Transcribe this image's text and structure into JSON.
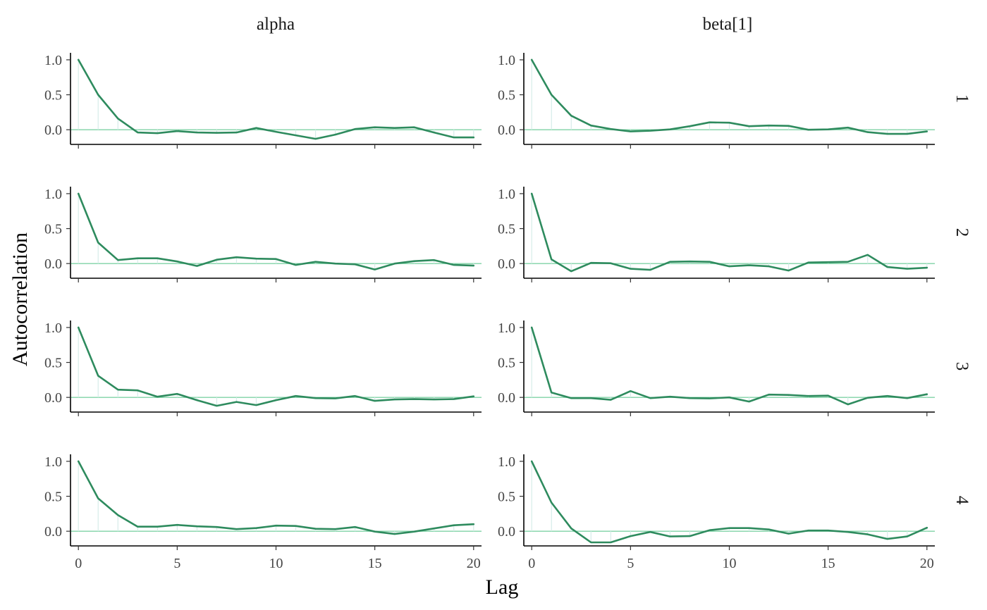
{
  "chart_data": {
    "type": "line",
    "xlabel": "Lag",
    "ylabel": "Autocorrelation",
    "xlim": [
      -0.4,
      20.4
    ],
    "ylim": [
      -0.21,
      1.1
    ],
    "x_ticks": [
      0,
      5,
      10,
      15,
      20
    ],
    "y_ticks": [
      0.0,
      0.5,
      1.0
    ],
    "y_tick_labels": [
      "0.0",
      "0.5",
      "1.0"
    ],
    "grid": false,
    "colors": {
      "line": "#2e8b5e",
      "zero_line": "#7fd3a6",
      "bars": "#d6ece9"
    },
    "facet_columns": [
      "alpha",
      "beta[1]"
    ],
    "facet_rows": [
      "1",
      "2",
      "3",
      "4"
    ],
    "x": [
      0,
      1,
      2,
      3,
      4,
      5,
      6,
      7,
      8,
      9,
      10,
      11,
      12,
      13,
      14,
      15,
      16,
      17,
      18,
      19,
      20
    ],
    "panels": [
      {
        "column": "alpha",
        "row": "1",
        "values": [
          1.0,
          0.5,
          0.16,
          -0.04,
          -0.05,
          -0.02,
          -0.04,
          -0.045,
          -0.04,
          0.025,
          -0.03,
          -0.08,
          -0.13,
          -0.07,
          0.01,
          0.035,
          0.025,
          0.035,
          -0.04,
          -0.11,
          -0.11
        ]
      },
      {
        "column": "beta[1]",
        "row": "1",
        "values": [
          1.0,
          0.5,
          0.2,
          0.06,
          0.01,
          -0.025,
          -0.015,
          0.005,
          0.05,
          0.105,
          0.1,
          0.05,
          0.06,
          0.055,
          0.0,
          0.005,
          0.03,
          -0.035,
          -0.06,
          -0.06,
          -0.025
        ]
      },
      {
        "column": "alpha",
        "row": "2",
        "values": [
          1.0,
          0.3,
          0.05,
          0.075,
          0.075,
          0.03,
          -0.035,
          0.055,
          0.09,
          0.07,
          0.065,
          -0.02,
          0.025,
          0.0,
          -0.01,
          -0.085,
          0.0,
          0.035,
          0.05,
          -0.02,
          -0.03
        ]
      },
      {
        "column": "beta[1]",
        "row": "2",
        "values": [
          1.0,
          0.06,
          -0.11,
          0.01,
          0.005,
          -0.075,
          -0.09,
          0.025,
          0.03,
          0.025,
          -0.04,
          -0.025,
          -0.04,
          -0.1,
          0.015,
          0.02,
          0.025,
          0.125,
          -0.05,
          -0.075,
          -0.06
        ]
      },
      {
        "column": "alpha",
        "row": "3",
        "values": [
          1.0,
          0.31,
          0.11,
          0.1,
          0.01,
          0.05,
          -0.04,
          -0.12,
          -0.065,
          -0.11,
          -0.04,
          0.02,
          -0.01,
          -0.015,
          0.02,
          -0.05,
          -0.03,
          -0.025,
          -0.03,
          -0.025,
          0.015
        ]
      },
      {
        "column": "beta[1]",
        "row": "3",
        "values": [
          1.0,
          0.07,
          -0.01,
          -0.01,
          -0.035,
          0.09,
          -0.01,
          0.01,
          -0.01,
          -0.015,
          0.0,
          -0.06,
          0.04,
          0.035,
          0.02,
          0.025,
          -0.1,
          -0.005,
          0.02,
          -0.01,
          0.045
        ]
      },
      {
        "column": "alpha",
        "row": "4",
        "values": [
          1.0,
          0.47,
          0.23,
          0.065,
          0.065,
          0.09,
          0.07,
          0.06,
          0.03,
          0.045,
          0.08,
          0.075,
          0.035,
          0.03,
          0.06,
          -0.005,
          -0.04,
          -0.005,
          0.04,
          0.085,
          0.1
        ]
      },
      {
        "column": "beta[1]",
        "row": "4",
        "values": [
          1.0,
          0.41,
          0.04,
          -0.16,
          -0.16,
          -0.07,
          -0.01,
          -0.075,
          -0.07,
          0.015,
          0.045,
          0.045,
          0.025,
          -0.035,
          0.01,
          0.01,
          -0.01,
          -0.045,
          -0.11,
          -0.075,
          0.05
        ]
      }
    ]
  }
}
